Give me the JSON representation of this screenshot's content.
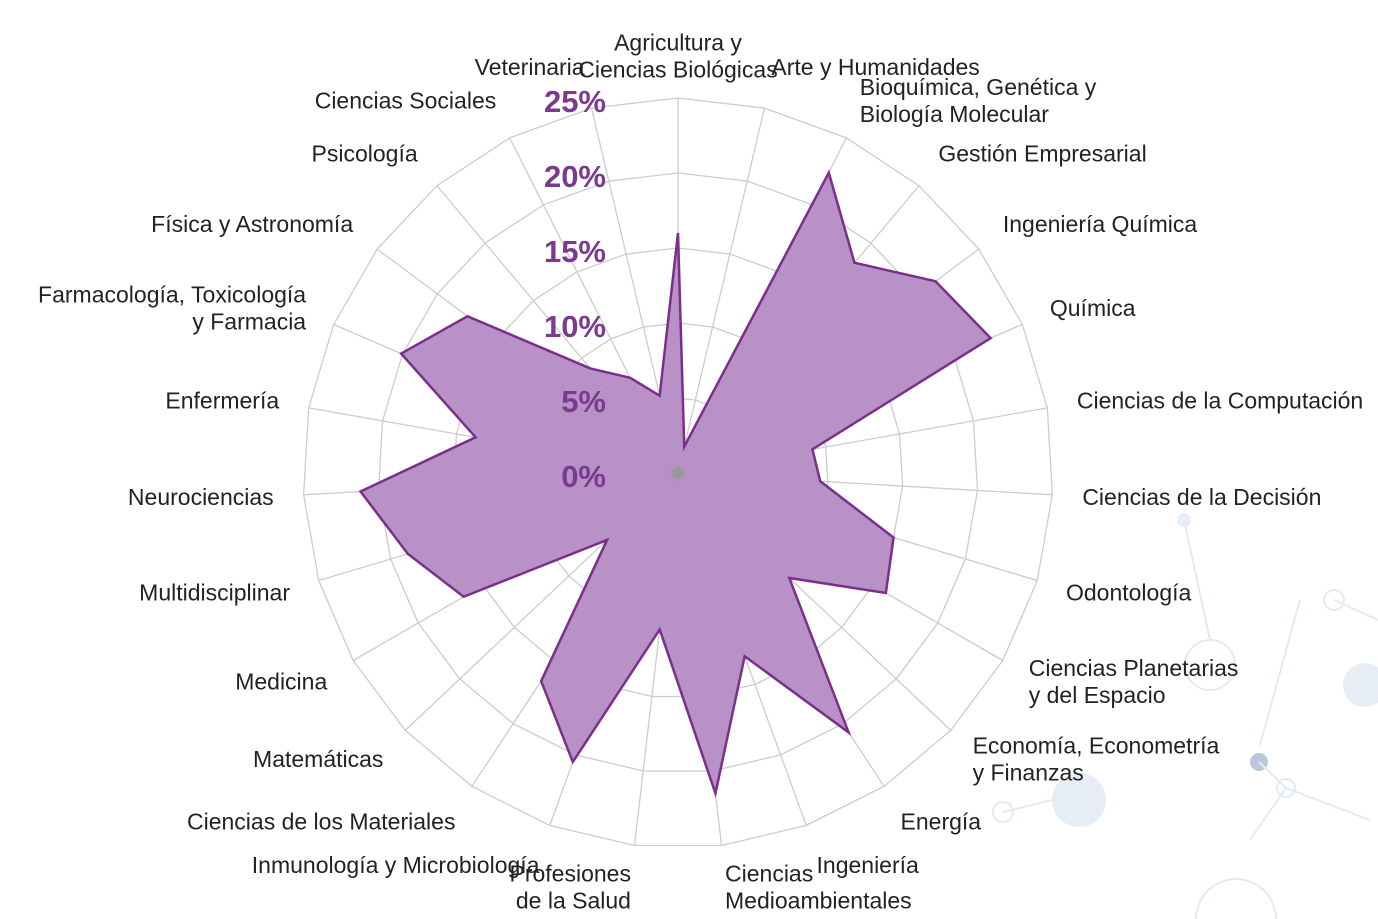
{
  "chart_data": {
    "type": "radar",
    "categories": [
      "Agricultura y\nCiencias Biológicas",
      "Arte y Humanidades",
      "Bioquímica, Genética y\nBiología Molecular",
      "Gestión Empresarial",
      "Ingeniería Química",
      "Química",
      "Ciencias de la Computación",
      "Ciencias de la Decisión",
      "Odontología",
      "Ciencias Planetarias\ny del Espacio",
      "Economía, Econometría\ny Finanzas",
      "Energía",
      "Ingeniería",
      "Ciencias\nMedioambientales",
      "Profesiones\nde la Salud",
      "Inmunología y Microbiología",
      "Ciencias de los Materiales",
      "Matemáticas",
      "Medicina",
      "Multidisciplinar",
      "Neurociencias",
      "Enfermería",
      "Farmacología, Toxicología\ny Farmacia",
      "Física y Astronomía",
      "Psicología",
      "Ciencias Sociales",
      "Veterinaria"
    ],
    "values": [
      16,
      1.8,
      22.4,
      18.3,
      21.4,
      22.7,
      9.1,
      9.5,
      15,
      16,
      10.2,
      20.7,
      13,
      21.5,
      10.5,
      20.5,
      16.6,
      6.5,
      16.5,
      18.8,
      21.2,
      13.7,
      20.1,
      17.5,
      9.1,
      7.1,
      5.3
    ],
    "color": "#7b2f8b",
    "fill": "#b48cc4",
    "ylim": [
      0,
      25
    ],
    "yticks": [
      {
        "value": 0,
        "label": "0%"
      },
      {
        "value": 5,
        "label": "5%"
      },
      {
        "value": 10,
        "label": "10%"
      },
      {
        "value": 15,
        "label": "15%"
      },
      {
        "value": 20,
        "label": "20%"
      },
      {
        "value": 25,
        "label": "25%"
      }
    ],
    "grid": true
  }
}
